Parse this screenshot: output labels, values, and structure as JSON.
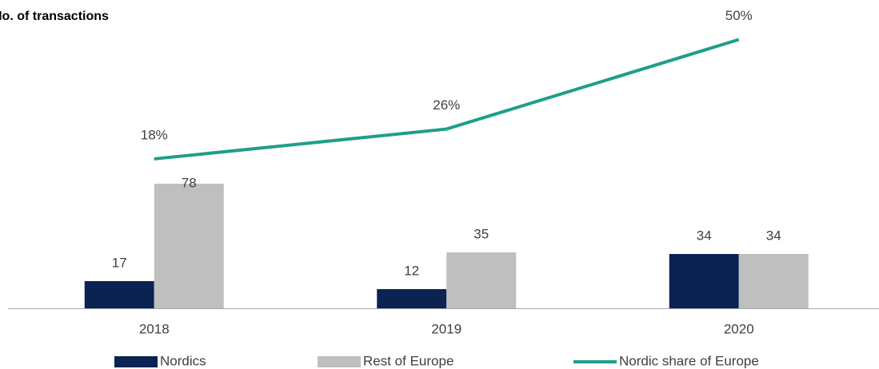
{
  "chart_data": {
    "type": "bar_line",
    "title": "No. of transactions",
    "categories": [
      "2018",
      "2019",
      "2020"
    ],
    "series": [
      {
        "name": "Nordics",
        "color": "#0a2352",
        "values": [
          17,
          12,
          34
        ]
      },
      {
        "name": "Rest of Europe",
        "color": "#bfbfbf",
        "values": [
          78,
          35,
          34
        ]
      },
      {
        "name": "Nordic share of Europe",
        "color": "#1f9e8a",
        "axis": "y2",
        "values": [
          18,
          26,
          50
        ],
        "value_labels": [
          "18%",
          "26%",
          "50%"
        ]
      }
    ],
    "ylim": [
      0,
      100
    ],
    "y2lim": [
      0,
      100
    ]
  }
}
